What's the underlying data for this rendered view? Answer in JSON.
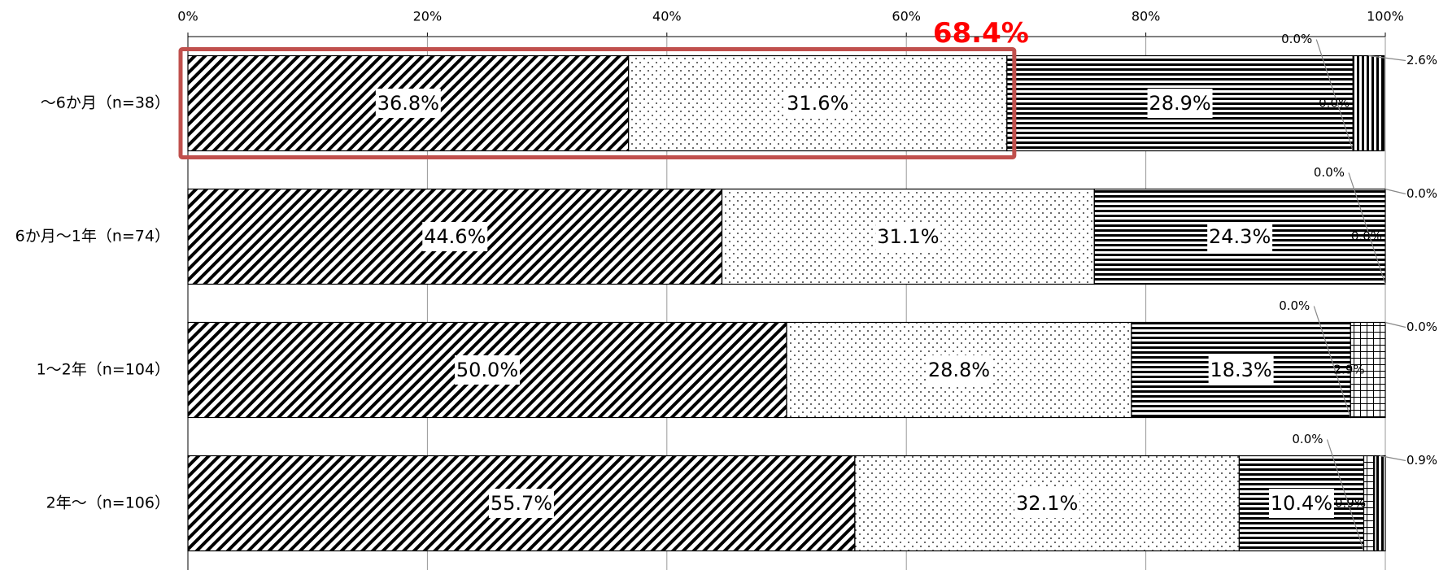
{
  "chart_data": {
    "type": "stacked-bar-horizontal",
    "categories": [
      "～6か月（n=38）",
      "6か月～1年（n=74）",
      "1～2年（n=104）",
      "2年～（n=106）"
    ],
    "series": [
      {
        "pattern": "diagonal",
        "values": [
          36.8,
          44.6,
          50.0,
          55.7
        ],
        "value_labels": [
          "36.8%",
          "44.6%",
          "50.0%",
          "55.7%"
        ]
      },
      {
        "pattern": "dots",
        "values": [
          31.6,
          31.1,
          28.8,
          32.1
        ],
        "value_labels": [
          "31.6%",
          "31.1%",
          "28.8%",
          "32.1%"
        ]
      },
      {
        "pattern": "horizontal",
        "values": [
          28.9,
          24.3,
          18.3,
          10.4
        ],
        "value_labels": [
          "28.9%",
          "24.3%",
          "18.3%",
          "10.4%"
        ]
      },
      {
        "pattern": "solid-white",
        "values": [
          0.0,
          0.0,
          0.0,
          0.0
        ],
        "value_labels": [
          "0.0%",
          "0.0%",
          "0.0%",
          "0.0%"
        ]
      },
      {
        "pattern": "grid",
        "values": [
          0.0,
          0.0,
          2.9,
          0.9
        ],
        "value_labels": [
          "0.0%",
          "0.0%",
          "2.9%",
          "0.9%"
        ]
      },
      {
        "pattern": "vertical",
        "values": [
          2.6,
          0.0,
          0.0,
          0.9
        ],
        "value_labels": [
          "2.6%",
          "0.0%",
          "0.0%",
          "0.9%"
        ]
      }
    ],
    "xlim": [
      0,
      100
    ],
    "xticks": [
      {
        "value": 0,
        "label": "0%"
      },
      {
        "value": 20,
        "label": "20%"
      },
      {
        "value": 40,
        "label": "40%"
      },
      {
        "value": 60,
        "label": "60%"
      },
      {
        "value": 80,
        "label": "80%"
      },
      {
        "value": 100,
        "label": "100%"
      }
    ],
    "grid": true,
    "annotation": {
      "text": "68.4%",
      "color": "#ff0000",
      "box_color": "#c0504d"
    }
  }
}
